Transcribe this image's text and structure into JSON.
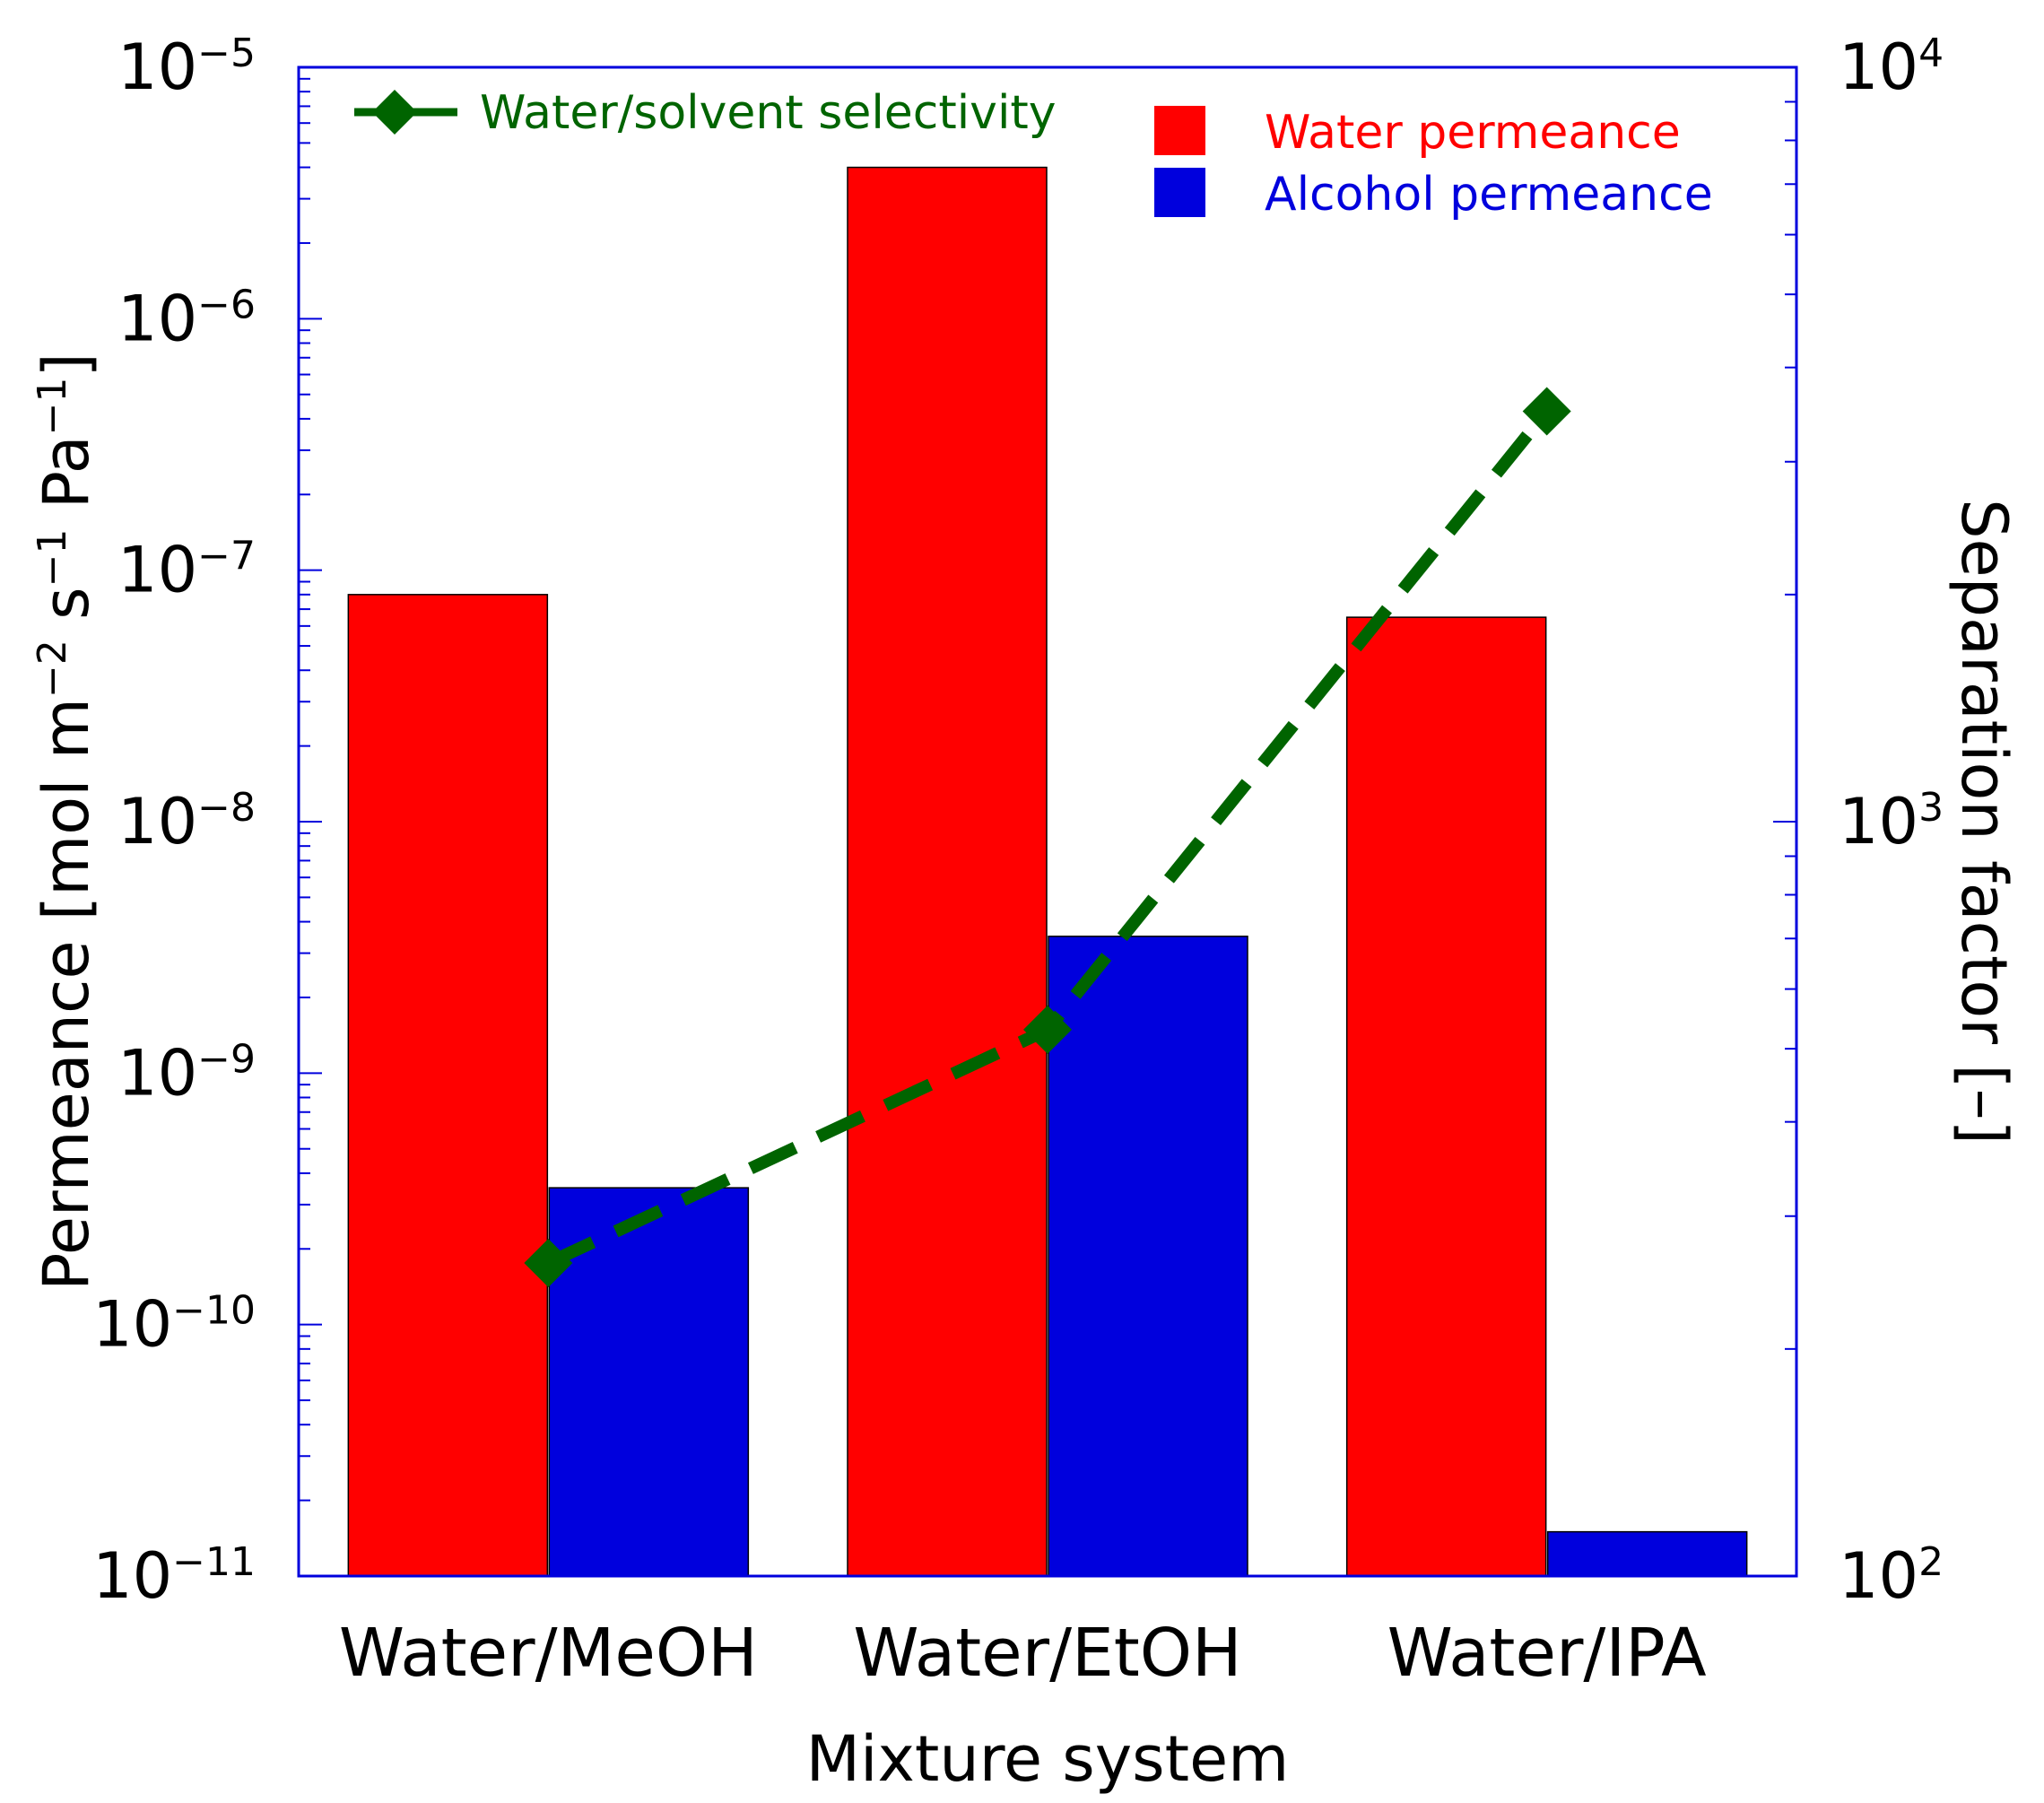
{
  "chart_data": {
    "type": "bar",
    "categories": [
      "Water/MeOH",
      "Water/EtOH",
      "Water/IPA"
    ],
    "series": [
      {
        "name": "Water permeance",
        "axis": "left",
        "color": "#ff0000",
        "values": [
          8e-08,
          4e-06,
          6.5e-08
        ]
      },
      {
        "name": "Alcohol permeance",
        "axis": "left",
        "color": "#0000dd",
        "values": [
          3.5e-10,
          3.5e-09,
          1.5e-11
        ]
      },
      {
        "name": "Water/solvent selectivity",
        "axis": "right",
        "type": "line",
        "line_style": "dashed",
        "marker": "diamond",
        "color": "#006400",
        "values": [
          260,
          530,
          3500
        ]
      }
    ],
    "title": "",
    "xlabel": "Mixture system",
    "ylabel": "Permeance [mol m⁻² s⁻¹ Pa⁻¹]",
    "ylabel_parts": {
      "before_m": "Permeance [mol m",
      "exp_m": "−2",
      "before_s": " s",
      "exp_s": "−1",
      "before_pa": " Pa",
      "exp_pa": "−1",
      "end": "]"
    },
    "ylim": [
      1e-11,
      1e-05
    ],
    "y_scale": "log",
    "y_tick_labels": [
      {
        "base": "10",
        "exp": "−5",
        "value": 1e-05
      },
      {
        "base": "10",
        "exp": "−6",
        "value": 1e-06
      },
      {
        "base": "10",
        "exp": "−7",
        "value": 1e-07
      },
      {
        "base": "10",
        "exp": "−8",
        "value": 1e-08
      },
      {
        "base": "10",
        "exp": "−9",
        "value": 1e-09
      },
      {
        "base": "10",
        "exp": "−10",
        "value": 1e-10
      },
      {
        "base": "10",
        "exp": "−11",
        "value": 1e-11
      }
    ],
    "y2label": "Separation factor [–]",
    "y2lim": [
      100,
      10000
    ],
    "y2_scale": "log",
    "y2_tick_labels": [
      {
        "base": "10",
        "exp": "4",
        "value": 10000
      },
      {
        "base": "10",
        "exp": "3",
        "value": 1000
      },
      {
        "base": "10",
        "exp": "2",
        "value": 100
      }
    ],
    "legend": {
      "line_entry": "Water/solvent selectivity",
      "line_entry_position": "top-left",
      "bar_entries": [
        "Water permeance",
        "Alcohol permeance"
      ],
      "bar_entries_position": "top-right"
    },
    "grid": false
  },
  "colors": {
    "axis_frame": "#0000dd",
    "water_bar": "#ff0000",
    "alcohol_bar": "#0000dd",
    "selectivity_line": "#006400"
  }
}
